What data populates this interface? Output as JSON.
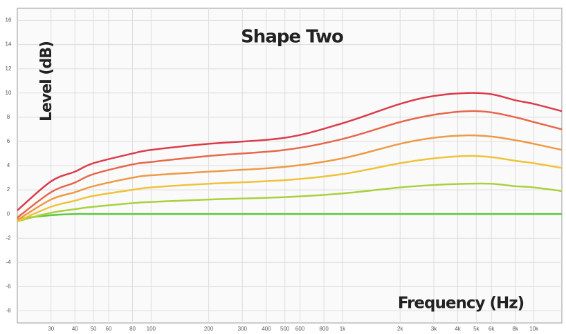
{
  "chart_data": {
    "type": "line",
    "title": "Shape Two",
    "x_label": "Frequency (Hz)",
    "y_label": "Level (dB)",
    "x_scale": "log",
    "grid": true,
    "x": [
      20,
      30,
      40,
      50,
      80,
      100,
      200,
      500,
      1000,
      2000,
      3000,
      4500,
      6000,
      8000,
      10000,
      14000
    ],
    "series": [
      {
        "color": "#5fc73f",
        "values": [
          -0.4,
          -0.1,
          0,
          0,
          0,
          0,
          0,
          0,
          0,
          0,
          0,
          0,
          0,
          0,
          0,
          0
        ]
      },
      {
        "color": "#a9d13c",
        "values": [
          -0.6,
          0.1,
          0.4,
          0.6,
          0.9,
          1.0,
          1.2,
          1.4,
          1.7,
          2.2,
          2.4,
          2.5,
          2.5,
          2.3,
          2.2,
          1.9
        ]
      },
      {
        "color": "#f0c23a",
        "values": [
          -0.6,
          0.6,
          1.1,
          1.5,
          2.0,
          2.2,
          2.5,
          2.8,
          3.3,
          4.2,
          4.6,
          4.8,
          4.7,
          4.4,
          4.2,
          3.8
        ]
      },
      {
        "color": "#ee9a44",
        "values": [
          -0.5,
          1.2,
          1.8,
          2.3,
          3.0,
          3.2,
          3.5,
          3.9,
          4.6,
          5.8,
          6.3,
          6.5,
          6.4,
          6.1,
          5.8,
          5.3
        ]
      },
      {
        "color": "#e5684a",
        "values": [
          -0.3,
          1.8,
          2.6,
          3.3,
          4.1,
          4.3,
          4.8,
          5.3,
          6.2,
          7.6,
          8.2,
          8.5,
          8.4,
          8.0,
          7.6,
          7.0
        ]
      },
      {
        "color": "#dc3b4a",
        "values": [
          0.3,
          2.7,
          3.5,
          4.2,
          5.0,
          5.3,
          5.8,
          6.3,
          7.5,
          9.1,
          9.75,
          10,
          9.9,
          9.4,
          9.1,
          8.5
        ]
      }
    ],
    "xlim": [
      20,
      14000
    ],
    "xticks": [
      30,
      40,
      50,
      60,
      80,
      100,
      200,
      300,
      400,
      500,
      600,
      800,
      {
        "value": 1000,
        "label": "1k"
      },
      {
        "value": 2000,
        "label": "2k"
      },
      {
        "value": 3000,
        "label": "3k"
      },
      {
        "value": 4000,
        "label": "4k"
      },
      {
        "value": 5000,
        "label": "5k"
      },
      {
        "value": 6000,
        "label": "6k"
      },
      {
        "value": 8000,
        "label": "8k"
      },
      {
        "value": 10000,
        "label": "10k"
      }
    ],
    "ylim": [
      -9,
      17
    ],
    "yticks": [
      -8,
      -6,
      -4,
      -2,
      0,
      2,
      4,
      6,
      8,
      10,
      12,
      14,
      16
    ]
  }
}
